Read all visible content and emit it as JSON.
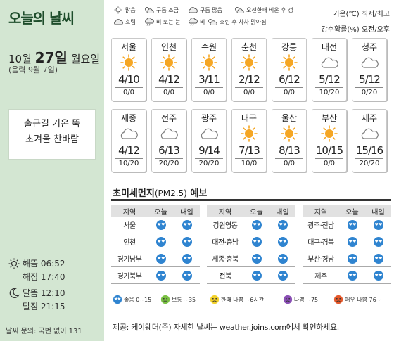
{
  "title": "오늘의 날씨",
  "date": {
    "month": "10월",
    "day": "27일",
    "weekday": "월요일",
    "lunar": "(음력 9월 7일)"
  },
  "message": {
    "line1": "출근길 기온 뚝",
    "line2": "초겨울 찬바람"
  },
  "sun": {
    "rise": "해뜸 06:52",
    "set": "해짐 17:40"
  },
  "moon": {
    "rise": "달뜸 12:10",
    "set": "달짐 21:15"
  },
  "inquiry": "날씨 문의: 국번 없이 131",
  "weather_legend": [
    {
      "icon": "sun-icon",
      "label": "맑음"
    },
    {
      "icon": "partly-cloudy-icon",
      "label": "구름 조금"
    },
    {
      "icon": "mostly-cloudy-icon",
      "label": "구름 많음"
    },
    {
      "icon": "sunny-then-rain-icon",
      "label": "오전한때 비온 후 갬"
    },
    {
      "icon": "cloudy-icon",
      "label": "흐림"
    },
    {
      "icon": "rain-or-snow-icon",
      "label": "비 또는 눈"
    },
    {
      "icon": "rain-icon",
      "label": "비"
    },
    {
      "icon": "cloudy-then-clear-icon",
      "label": "흐린 후 차차 맑아짐"
    }
  ],
  "units": {
    "temp": "기온(℃) 최저/최고",
    "rain": "강수확률(%) 오전/오후"
  },
  "cities": [
    {
      "name": "서울",
      "icon": "sun",
      "temp": "4/10",
      "rain": "0/0"
    },
    {
      "name": "인천",
      "icon": "sun",
      "temp": "4/12",
      "rain": "0/0"
    },
    {
      "name": "수원",
      "icon": "sun",
      "temp": "3/11",
      "rain": "0/0"
    },
    {
      "name": "춘천",
      "icon": "sun",
      "temp": "2/12",
      "rain": "0/0"
    },
    {
      "name": "강릉",
      "icon": "sun",
      "temp": "6/12",
      "rain": "0/0"
    },
    {
      "name": "대전",
      "icon": "cloud",
      "temp": "5/12",
      "rain": "10/20"
    },
    {
      "name": "청주",
      "icon": "cloud",
      "temp": "5/12",
      "rain": "0/20"
    },
    {
      "name": "세종",
      "icon": "cloud",
      "temp": "4/12",
      "rain": "10/20"
    },
    {
      "name": "전주",
      "icon": "cloud",
      "temp": "6/13",
      "rain": "20/20"
    },
    {
      "name": "광주",
      "icon": "cloud",
      "temp": "9/14",
      "rain": "20/20"
    },
    {
      "name": "대구",
      "icon": "sun",
      "temp": "7/13",
      "rain": "10/0"
    },
    {
      "name": "울산",
      "icon": "sun",
      "temp": "8/13",
      "rain": "0/0"
    },
    {
      "name": "부산",
      "icon": "sun",
      "temp": "10/15",
      "rain": "0/0"
    },
    {
      "name": "제주",
      "icon": "cloud",
      "temp": "15/16",
      "rain": "20/20"
    }
  ],
  "pm": {
    "title": "초미세먼지",
    "subtitle": "(PM2.5)",
    "title_end": "예보",
    "headers": {
      "region": "지역",
      "today": "오늘",
      "tomorrow": "내일"
    },
    "columns": [
      [
        {
          "region": "서울",
          "today": "good",
          "tomorrow": "good"
        },
        {
          "region": "인천",
          "today": "good",
          "tomorrow": "good"
        },
        {
          "region": "경기남부",
          "today": "good",
          "tomorrow": "good"
        },
        {
          "region": "경기북부",
          "today": "good",
          "tomorrow": "good"
        }
      ],
      [
        {
          "region": "강원영동",
          "today": "good",
          "tomorrow": "good"
        },
        {
          "region": "대전·충남",
          "today": "good",
          "tomorrow": "good"
        },
        {
          "region": "세종·충북",
          "today": "good",
          "tomorrow": "good"
        },
        {
          "region": "전북",
          "today": "good",
          "tomorrow": "good"
        }
      ],
      [
        {
          "region": "광주·전남",
          "today": "good",
          "tomorrow": "good"
        },
        {
          "region": "대구·경북",
          "today": "good",
          "tomorrow": "good"
        },
        {
          "region": "부산·경남",
          "today": "good",
          "tomorrow": "good"
        },
        {
          "region": "제주",
          "today": "good",
          "tomorrow": "good"
        }
      ]
    ],
    "legend": [
      {
        "icon": "good-face-icon",
        "label": "좋음 0~15"
      },
      {
        "icon": "normal-face-icon",
        "label": "보통 ~35"
      },
      {
        "icon": "bad-brief-face-icon",
        "label": "한때 나쁨 ~6시간"
      },
      {
        "icon": "bad-face-icon",
        "label": "나쁨 ~75"
      },
      {
        "icon": "very-bad-face-icon",
        "label": "매우 나쁨 76~"
      }
    ]
  },
  "source": "제공: 케이웨더(주) 자세한 날씨는 weather.joins.com에서 확인하세요.",
  "colors": {
    "panel": "#d3e6d2",
    "title": "#1e4d2b",
    "sun": "#f5a623",
    "cloud": "#b5b5b5",
    "good": "#2f84d0"
  }
}
